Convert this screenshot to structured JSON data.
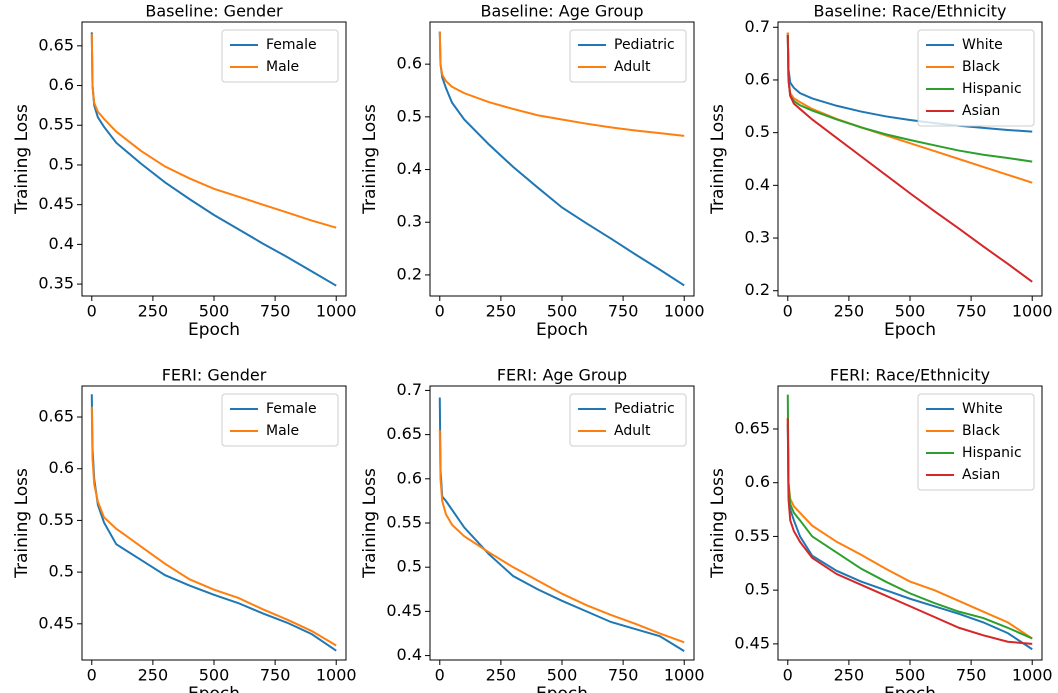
{
  "chart_data": [
    {
      "type": "line",
      "title": "Baseline: Gender",
      "x_label": "Epoch",
      "y_label": "Training Loss",
      "x": [
        0,
        3,
        10,
        25,
        50,
        100,
        200,
        300,
        400,
        500,
        600,
        700,
        800,
        900,
        1000
      ],
      "series": [
        {
          "name": "Female",
          "color": "#1f77b4",
          "values": [
            0.667,
            0.6,
            0.575,
            0.56,
            0.548,
            0.528,
            0.502,
            0.478,
            0.457,
            0.437,
            0.419,
            0.401,
            0.384,
            0.366,
            0.348
          ]
        },
        {
          "name": "Male",
          "color": "#ff7f0e",
          "values": [
            0.665,
            0.6,
            0.578,
            0.567,
            0.558,
            0.542,
            0.518,
            0.498,
            0.483,
            0.47,
            0.46,
            0.45,
            0.44,
            0.43,
            0.421
          ]
        }
      ],
      "xlim": [
        -40,
        1040
      ],
      "xticks": [
        0,
        250,
        500,
        750,
        1000
      ],
      "ylim": [
        0.335,
        0.68
      ],
      "yticks": [
        0.35,
        0.4,
        0.45,
        0.5,
        0.55,
        0.6,
        0.65
      ],
      "legend": "upper right"
    },
    {
      "type": "line",
      "title": "Baseline: Age Group",
      "x_label": "Epoch",
      "y_label": "Training Loss",
      "x": [
        0,
        3,
        10,
        25,
        50,
        100,
        200,
        300,
        400,
        500,
        600,
        700,
        800,
        900,
        1000
      ],
      "series": [
        {
          "name": "Pediatric",
          "color": "#1f77b4",
          "values": [
            0.662,
            0.6,
            0.575,
            0.555,
            0.527,
            0.495,
            0.448,
            0.405,
            0.366,
            0.328,
            0.298,
            0.269,
            0.239,
            0.21,
            0.18
          ]
        },
        {
          "name": "Adult",
          "color": "#ff7f0e",
          "values": [
            0.662,
            0.6,
            0.58,
            0.568,
            0.557,
            0.545,
            0.528,
            0.515,
            0.503,
            0.495,
            0.487,
            0.48,
            0.474,
            0.469,
            0.464
          ]
        }
      ],
      "xlim": [
        -40,
        1040
      ],
      "xticks": [
        0,
        250,
        500,
        750,
        1000
      ],
      "ylim": [
        0.16,
        0.68
      ],
      "yticks": [
        0.2,
        0.3,
        0.4,
        0.5,
        0.6
      ],
      "legend": "upper right"
    },
    {
      "type": "line",
      "title": "Baseline: Race/Ethnicity",
      "x_label": "Epoch",
      "y_label": "Training Loss",
      "x": [
        0,
        3,
        10,
        25,
        50,
        100,
        200,
        300,
        400,
        500,
        600,
        700,
        800,
        900,
        1000
      ],
      "series": [
        {
          "name": "White",
          "color": "#1f77b4",
          "values": [
            0.69,
            0.62,
            0.595,
            0.585,
            0.575,
            0.565,
            0.551,
            0.54,
            0.531,
            0.524,
            0.518,
            0.513,
            0.509,
            0.505,
            0.502
          ]
        },
        {
          "name": "Black",
          "color": "#ff7f0e",
          "values": [
            0.69,
            0.6,
            0.575,
            0.565,
            0.558,
            0.545,
            0.526,
            0.51,
            0.495,
            0.48,
            0.465,
            0.45,
            0.435,
            0.42,
            0.405
          ]
        },
        {
          "name": "Hispanic",
          "color": "#2ca02c",
          "values": [
            0.685,
            0.6,
            0.57,
            0.56,
            0.552,
            0.542,
            0.525,
            0.51,
            0.497,
            0.486,
            0.476,
            0.466,
            0.458,
            0.452,
            0.445
          ]
        },
        {
          "name": "Asian",
          "color": "#d62728",
          "values": [
            0.685,
            0.6,
            0.57,
            0.555,
            0.545,
            0.525,
            0.49,
            0.455,
            0.42,
            0.385,
            0.351,
            0.318,
            0.284,
            0.251,
            0.217
          ]
        }
      ],
      "xlim": [
        -40,
        1040
      ],
      "xticks": [
        0,
        250,
        500,
        750,
        1000
      ],
      "ylim": [
        0.19,
        0.71
      ],
      "yticks": [
        0.2,
        0.3,
        0.4,
        0.5,
        0.6,
        0.7
      ],
      "legend": "upper right"
    },
    {
      "type": "line",
      "title": "FERI: Gender",
      "x_label": "Epoch",
      "y_label": "Training Loss",
      "x": [
        0,
        3,
        10,
        25,
        50,
        100,
        200,
        300,
        400,
        500,
        600,
        700,
        800,
        900,
        1000
      ],
      "series": [
        {
          "name": "Female",
          "color": "#1f77b4",
          "values": [
            0.672,
            0.62,
            0.59,
            0.565,
            0.548,
            0.527,
            0.512,
            0.497,
            0.487,
            0.478,
            0.47,
            0.46,
            0.451,
            0.44,
            0.424
          ]
        },
        {
          "name": "Male",
          "color": "#ff7f0e",
          "values": [
            0.66,
            0.61,
            0.585,
            0.568,
            0.553,
            0.542,
            0.525,
            0.508,
            0.493,
            0.483,
            0.475,
            0.464,
            0.454,
            0.443,
            0.429
          ]
        }
      ],
      "xlim": [
        -40,
        1040
      ],
      "xticks": [
        0,
        250,
        500,
        750,
        1000
      ],
      "ylim": [
        0.415,
        0.68
      ],
      "yticks": [
        0.45,
        0.5,
        0.55,
        0.6,
        0.65
      ],
      "legend": "upper right"
    },
    {
      "type": "line",
      "title": "FERI: Age Group",
      "x_label": "Epoch",
      "y_label": "Training Loss",
      "x": [
        0,
        3,
        10,
        25,
        50,
        100,
        200,
        300,
        400,
        500,
        600,
        700,
        800,
        900,
        1000
      ],
      "series": [
        {
          "name": "Pediatric",
          "color": "#1f77b4",
          "values": [
            0.692,
            0.61,
            0.58,
            0.575,
            0.565,
            0.545,
            0.515,
            0.49,
            0.475,
            0.462,
            0.45,
            0.438,
            0.43,
            0.422,
            0.405
          ]
        },
        {
          "name": "Adult",
          "color": "#ff7f0e",
          "values": [
            0.655,
            0.6,
            0.575,
            0.56,
            0.548,
            0.535,
            0.517,
            0.5,
            0.485,
            0.47,
            0.457,
            0.446,
            0.436,
            0.425,
            0.415
          ]
        }
      ],
      "xlim": [
        -40,
        1040
      ],
      "xticks": [
        0,
        250,
        500,
        750,
        1000
      ],
      "ylim": [
        0.395,
        0.705
      ],
      "yticks": [
        0.4,
        0.45,
        0.5,
        0.55,
        0.6,
        0.65,
        0.7
      ],
      "legend": "upper right"
    },
    {
      "type": "line",
      "title": "FERI: Race/Ethnicity",
      "x_label": "Epoch",
      "y_label": "Training Loss",
      "x": [
        0,
        3,
        10,
        25,
        50,
        100,
        200,
        300,
        400,
        500,
        600,
        700,
        800,
        900,
        1000
      ],
      "series": [
        {
          "name": "White",
          "color": "#1f77b4",
          "values": [
            0.655,
            0.59,
            0.575,
            0.565,
            0.55,
            0.532,
            0.518,
            0.508,
            0.5,
            0.492,
            0.485,
            0.478,
            0.47,
            0.46,
            0.445
          ]
        },
        {
          "name": "Black",
          "color": "#ff7f0e",
          "values": [
            0.66,
            0.6,
            0.585,
            0.578,
            0.572,
            0.56,
            0.545,
            0.533,
            0.52,
            0.508,
            0.5,
            0.49,
            0.48,
            0.47,
            0.455
          ]
        },
        {
          "name": "Hispanic",
          "color": "#2ca02c",
          "values": [
            0.682,
            0.6,
            0.58,
            0.572,
            0.565,
            0.55,
            0.535,
            0.52,
            0.508,
            0.497,
            0.488,
            0.48,
            0.474,
            0.465,
            0.455
          ]
        },
        {
          "name": "Asian",
          "color": "#d62728",
          "values": [
            0.66,
            0.585,
            0.565,
            0.555,
            0.545,
            0.53,
            0.515,
            0.505,
            0.495,
            0.485,
            0.475,
            0.465,
            0.458,
            0.452,
            0.45
          ]
        }
      ],
      "xlim": [
        -40,
        1040
      ],
      "xticks": [
        0,
        250,
        500,
        750,
        1000
      ],
      "ylim": [
        0.435,
        0.69
      ],
      "yticks": [
        0.45,
        0.5,
        0.55,
        0.6,
        0.65
      ],
      "legend": "upper right"
    }
  ]
}
